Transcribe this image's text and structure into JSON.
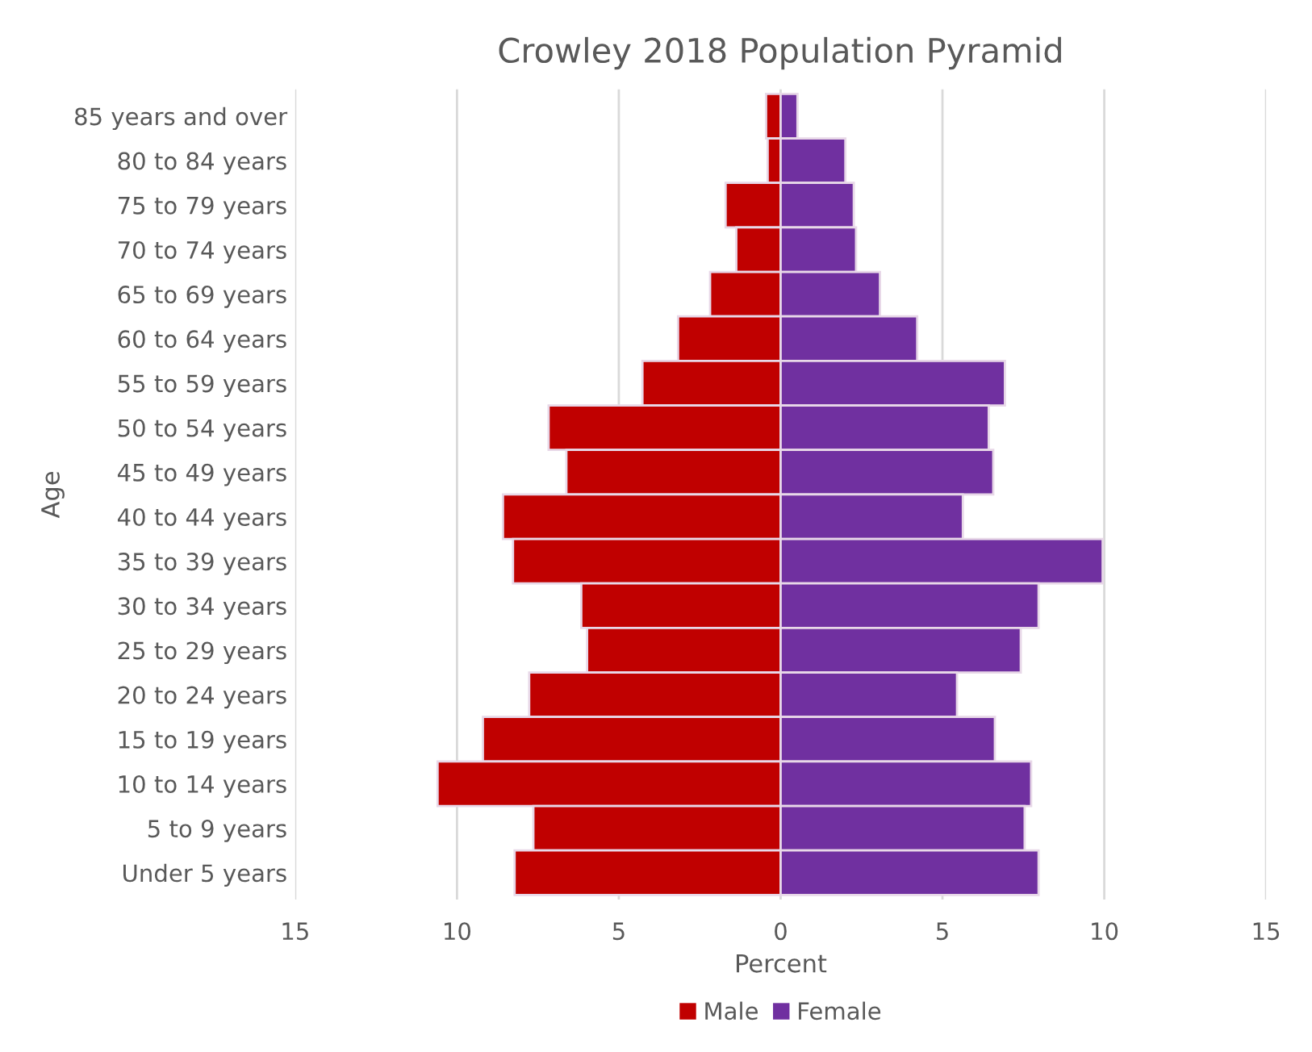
{
  "chart_data": {
    "type": "bar",
    "orientation": "horizontal",
    "title": "Crowley 2018 Population Pyramid",
    "xlabel": "Percent",
    "ylabel": "Age",
    "categories": [
      "85 years and over",
      "80 to 84 years",
      "75 to 79 years",
      "70 to 74 years",
      "65 to 69 years",
      "60 to 64 years",
      "55 to 59 years",
      "50 to 54 years",
      "45 to 49 years",
      "40 to 44 years",
      "35 to 39 years",
      "30 to 34 years",
      "25 to 29 years",
      "20 to 24 years",
      "15 to 19 years",
      "10 to 14 years",
      "5 to 9 years",
      "Under 5 years"
    ],
    "series": [
      {
        "name": "Male",
        "color": "#c00000",
        "values": [
          -0.45,
          -0.4,
          -1.7,
          -1.37,
          -2.18,
          -3.17,
          -4.27,
          -7.17,
          -6.62,
          -8.58,
          -8.27,
          -6.16,
          -5.98,
          -7.77,
          -9.2,
          -10.6,
          -7.64,
          -8.22
        ]
      },
      {
        "name": "Female",
        "color": "#7030a0",
        "values": [
          0.52,
          2.0,
          2.26,
          2.33,
          3.07,
          4.22,
          6.93,
          6.43,
          6.57,
          5.63,
          9.95,
          7.97,
          7.42,
          5.45,
          6.62,
          7.74,
          7.54,
          7.97
        ]
      }
    ],
    "xlim": [
      -15,
      15
    ],
    "xticks": [
      {
        "value": -15,
        "label": "15"
      },
      {
        "value": -10,
        "label": "10"
      },
      {
        "value": -5,
        "label": "5"
      },
      0,
      5,
      10,
      15
    ],
    "grid": "x",
    "legend": "bottom",
    "stacked": true
  }
}
